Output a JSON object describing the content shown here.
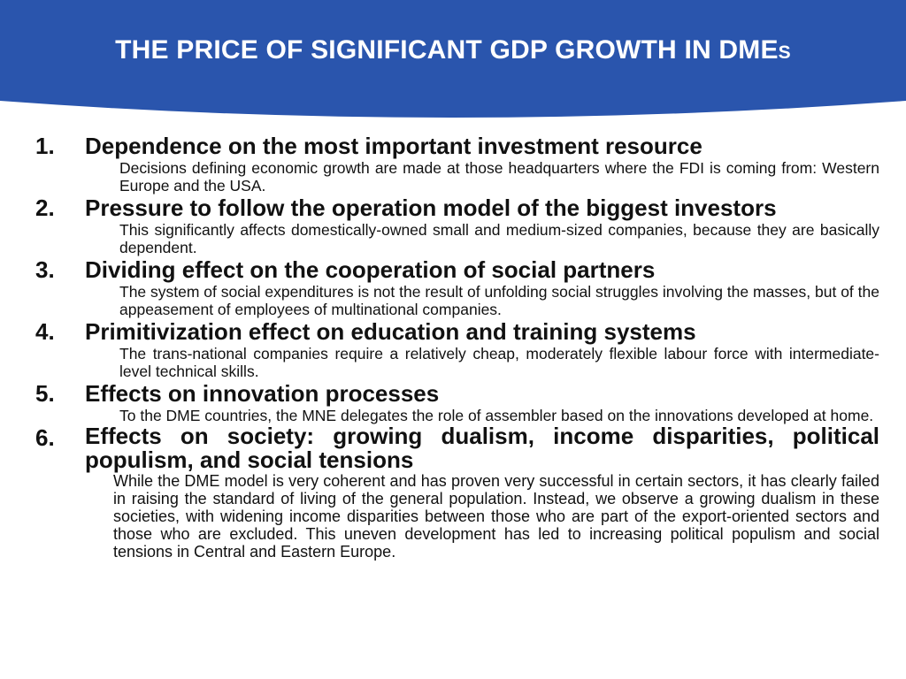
{
  "colors": {
    "header_background": "#2a55ad",
    "title_text": "#ffffff",
    "body_text": "#111111"
  },
  "title": {
    "main": "THE PRICE OF SIGNIFICANT GDP GROWTH IN DME",
    "suffix": "S"
  },
  "items": [
    {
      "number": "1.",
      "heading": "Dependence on the most important investment resource",
      "description": "Decisions defining economic growth are made at those headquarters where the FDI is coming from: Western Europe and the USA."
    },
    {
      "number": "2.",
      "heading": "Pressure to follow the operation model of the biggest investors",
      "description": "This significantly affects domestically-owned small and medium-sized companies, because they are basically dependent."
    },
    {
      "number": "3.",
      "heading": "Dividing effect on the cooperation of social partners",
      "description": "The system of social expenditures is not the result of unfolding social struggles involving the masses, but of the appeasement of employees of multinational companies."
    },
    {
      "number": "4.",
      "heading": "Primitivization effect on education and training systems",
      "description": "The trans-national companies require a relatively cheap, moderately flexible labour force with intermediate-level technical skills."
    },
    {
      "number": "5.",
      "heading": "Effects on innovation processes",
      "description": "To the DME countries, the MNE delegates the role of assembler based on the innovations developed at home."
    },
    {
      "number": "6.",
      "heading": "Effects on society: growing dualism, income disparities, political populism, and social tensions",
      "description": "While the DME model is very coherent and has proven very successful in certain sectors, it has clearly failed in raising the standard of living of the general population. Instead, we observe a growing dualism in these societies, with widening income disparities between those who are part of the export-oriented sectors and those who are excluded. This uneven development has led to increasing political populism and social tensions in Central and Eastern Europe."
    }
  ]
}
